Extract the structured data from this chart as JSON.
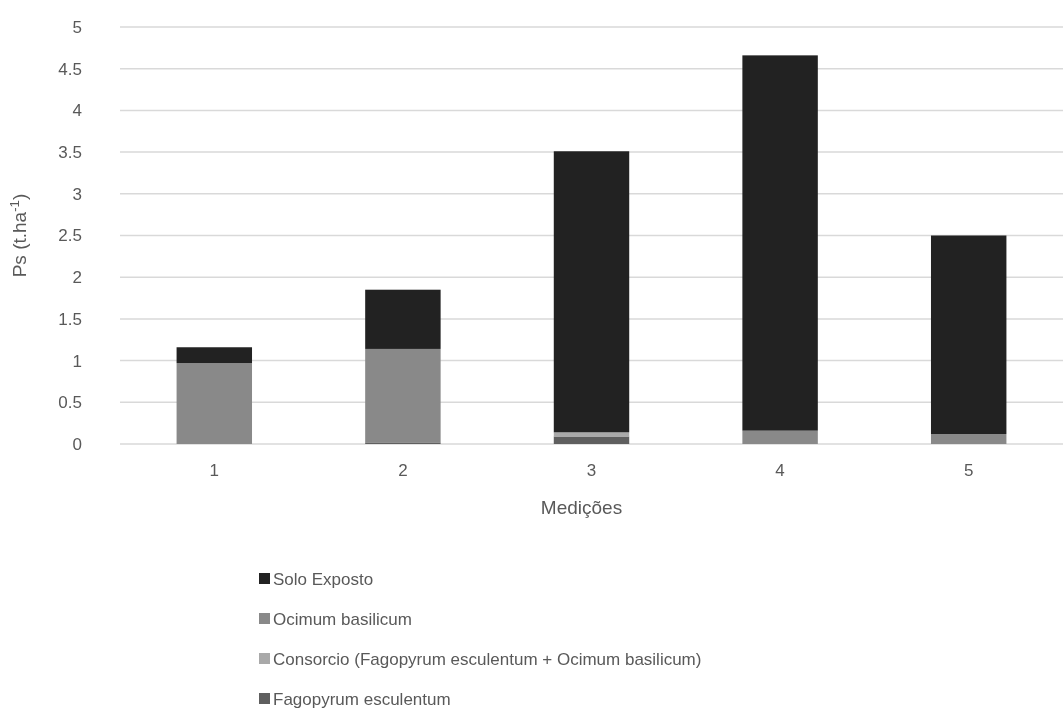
{
  "chart_data": {
    "type": "bar",
    "stacked": true,
    "xlabel": "Medições",
    "ylabel": "Ps (t.ha$^{-1}$)",
    "categories": [
      "1",
      "2",
      "3",
      "4",
      "5"
    ],
    "series": [
      {
        "name": "Fagopyrum esculentum",
        "color": "#5f5f5f",
        "values": [
          0,
          0.02,
          0.09,
          0,
          0
        ]
      },
      {
        "name": "Consorcio (Fagopyrum esculentum + Ocimum basilicum)",
        "color": "#a9a9a9",
        "values": [
          0,
          0,
          0.05,
          0,
          0
        ]
      },
      {
        "name": "Ocimum basilicum",
        "color": "#898989",
        "values": [
          0.97,
          1.12,
          0,
          0.16,
          0.12
        ]
      },
      {
        "name": "Solo Exposto",
        "color": "#222222",
        "values": [
          0.19,
          0.71,
          3.37,
          4.5,
          2.38
        ]
      }
    ],
    "ylim": [
      0,
      5
    ],
    "yticks": [
      0,
      0.5,
      1,
      1.5,
      2,
      2.5,
      3,
      3.5,
      4,
      4.5,
      5
    ],
    "grid": "y",
    "legend": "bottom"
  }
}
